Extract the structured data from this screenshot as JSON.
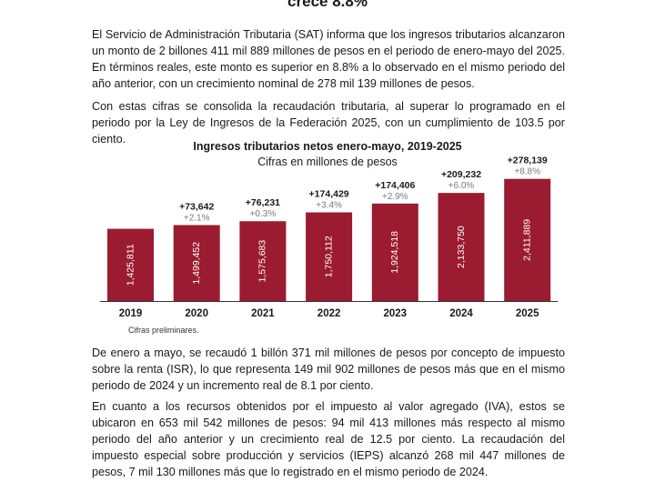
{
  "heading": "crece 8.8%",
  "paragraphs": {
    "p1": "El Servicio de Administración Tributaria (SAT) informa que los ingresos tributarios alcanzaron un monto de 2 billones 411 mil 889 millones de pesos en el periodo de enero-mayo del 2025. En términos reales, este monto es superior en 8.8% a lo observado en el mismo periodo del año anterior, con un crecimiento nominal de 278 mil 139 millones de pesos.",
    "p2": "Con estas cifras se consolida la recaudación tributaria, al superar lo programado en el periodo por la Ley de Ingresos de la Federación 2025, con un cumplimiento de 103.5 por ciento.",
    "p3": "De enero a mayo, se recaudó 1 billón 371 mil millones de pesos por concepto de impuesto sobre la renta (ISR), lo que representa 149 mil 902 millones de pesos más que en el mismo periodo de 2024 y un incremento real de 8.1 por ciento.",
    "p4": "En cuanto a los recursos obtenidos por el impuesto al valor agregado (IVA), estos se ubicaron en 653 mil 542 millones de pesos: 94 mil 413 millones más respecto al mismo periodo del año anterior y un crecimiento real de 12.5 por ciento. La recaudación del impuesto especial sobre producción y servicios (IEPS) alcanzó 268 mil 447 millones de pesos, 7 mil 130 millones más que lo registrado en el mismo periodo de 2024."
  },
  "note": "Cifras preliminares.",
  "colors": {
    "bar": "#9b1b30",
    "text": "#1a1a1a",
    "pct": "#7a7a7a",
    "bar_label": "#ffffff"
  },
  "chart_data": {
    "type": "bar",
    "title": "Ingresos tributarios netos enero-mayo, 2019-2025",
    "subtitle": "Cifras en millones de pesos",
    "categories": [
      "2019",
      "2020",
      "2021",
      "2022",
      "2023",
      "2024",
      "2025"
    ],
    "values": [
      1425811,
      1499452,
      1575683,
      1750112,
      1924518,
      2133750,
      2411889
    ],
    "value_labels": [
      "1,425,811",
      "1,499,452",
      "1,575,683",
      "1,750,112",
      "1,924,518",
      "2,133,750",
      "2,411,889"
    ],
    "increase_labels": [
      "",
      "+73,642",
      "+76,231",
      "+174,429",
      "+174,406",
      "+209,232",
      "+278,139"
    ],
    "real_growth_labels": [
      "",
      "+2.1%",
      "+0.3%",
      "+3.4%",
      "+2.9%",
      "+6.0%",
      "+8.8%"
    ],
    "ylim": [
      0,
      2500000
    ],
    "grid": false
  }
}
